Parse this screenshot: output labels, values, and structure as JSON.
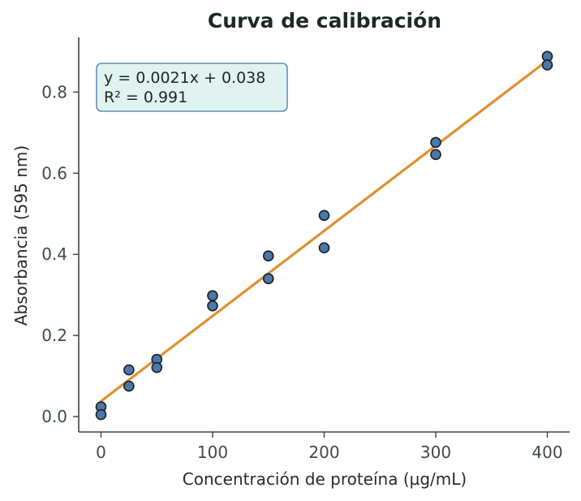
{
  "chart_data": {
    "type": "scatter",
    "title": "Curva de calibración",
    "xlabel": "Concentración de proteína (µg/mL)",
    "ylabel": "Absorbancia (595 nm)",
    "xlim": [
      -20,
      420
    ],
    "ylim": [
      -0.038,
      0.935
    ],
    "xticks": [
      0,
      100,
      200,
      300,
      400
    ],
    "xtick_labels": [
      "0",
      "100",
      "200",
      "300",
      "400"
    ],
    "yticks": [
      0.0,
      0.2,
      0.4,
      0.6,
      0.8
    ],
    "ytick_labels": [
      "0.0",
      "0.2",
      "0.4",
      "0.6",
      "0.8"
    ],
    "grid": false,
    "series": [
      {
        "kind": "scatter",
        "points": [
          {
            "x": 0,
            "y": 0.024
          },
          {
            "x": 0,
            "y": 0.005
          },
          {
            "x": 25,
            "y": 0.115
          },
          {
            "x": 25,
            "y": 0.075
          },
          {
            "x": 50,
            "y": 0.141
          },
          {
            "x": 50,
            "y": 0.121
          },
          {
            "x": 100,
            "y": 0.298
          },
          {
            "x": 100,
            "y": 0.273
          },
          {
            "x": 150,
            "y": 0.396
          },
          {
            "x": 150,
            "y": 0.34
          },
          {
            "x": 200,
            "y": 0.496
          },
          {
            "x": 200,
            "y": 0.416
          },
          {
            "x": 300,
            "y": 0.676
          },
          {
            "x": 300,
            "y": 0.646
          },
          {
            "x": 400,
            "y": 0.888
          },
          {
            "x": 400,
            "y": 0.867
          }
        ]
      },
      {
        "kind": "line",
        "slope": 0.0021,
        "intercept": 0.038,
        "x_range": [
          0,
          400
        ]
      }
    ],
    "annotation": {
      "lines": [
        "y = 0.0021x + 0.038",
        "R² = 0.991"
      ],
      "position": "top-left"
    },
    "colors": {
      "points_fill": "#4a78a8",
      "points_edge": "#1a1f2a",
      "line": "#e09030",
      "axis": "#3a4448",
      "annotation_fill": "#e0f3f0",
      "annotation_edge": "#4a78a8"
    }
  }
}
